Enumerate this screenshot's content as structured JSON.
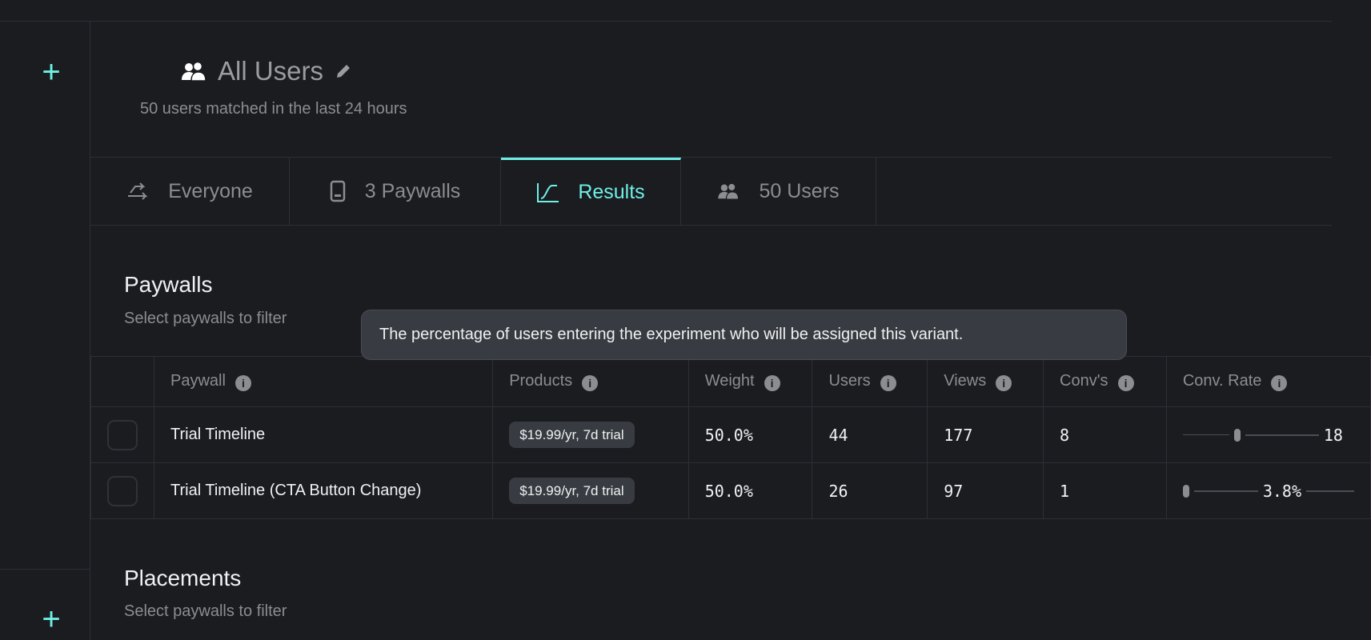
{
  "header": {
    "title": "All Users",
    "subtitle": "50 users matched in the last 24 hours"
  },
  "tabs": [
    {
      "label": "Everyone",
      "icon": "route-icon"
    },
    {
      "label": "3 Paywalls",
      "icon": "phone-icon"
    },
    {
      "label": "Results",
      "icon": "chart-icon",
      "active": true
    },
    {
      "label": "50 Users",
      "icon": "users-icon"
    }
  ],
  "paywalls": {
    "title": "Paywalls",
    "subtitle": "Select paywalls to filter",
    "tooltip": "The percentage of users entering the experiment who will be assigned this variant.",
    "columns": [
      "Paywall",
      "Products",
      "Weight",
      "Users",
      "Views",
      "Conv's",
      "Conv. Rate"
    ],
    "rows": [
      {
        "paywall": "Trial Timeline",
        "product": "$19.99/yr, 7d trial",
        "weight": "50.0%",
        "users": "44",
        "views": "177",
        "convs": "8",
        "rate": "18",
        "rate_fraction": 0.4
      },
      {
        "paywall": "Trial Timeline (CTA Button Change)",
        "product": "$19.99/yr, 7d trial",
        "weight": "50.0%",
        "users": "26",
        "views": "97",
        "convs": "1",
        "rate": "3.8%",
        "rate_fraction": 0.0
      }
    ]
  },
  "placements": {
    "title": "Placements",
    "subtitle": "Select paywalls to filter"
  },
  "colors": {
    "accent": "#6ff0e6",
    "background": "#1a1c20"
  }
}
